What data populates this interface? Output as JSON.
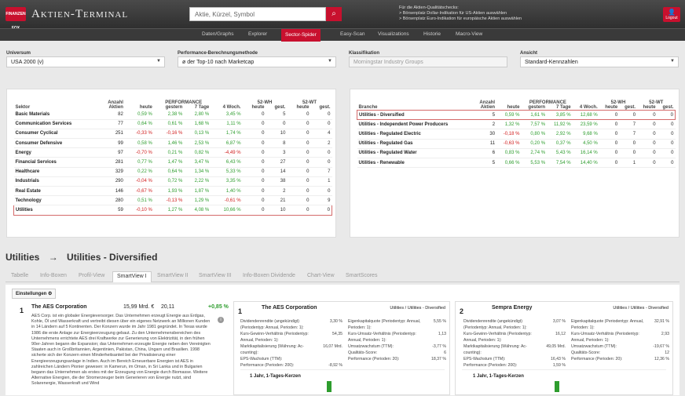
{
  "header": {
    "logo": "FINANZEN FOX",
    "title": "Aktien-Terminal",
    "search_placeholder": "Aktie, Kürzel, Symbol",
    "info": [
      "Für die Aktien-Qualitätschecks:",
      "> Börsenplatz Dollar-Indikation für US-Aktien auswählen",
      "> Börsenplatz Euro-Indikation für europäische Aktien auswählen"
    ],
    "logout": "Logout"
  },
  "nav": [
    "Daten/Graphs",
    "Explorer",
    "Sector-Spider",
    "Easy-Scan",
    "Visualizations",
    "Historie",
    "Macro-View"
  ],
  "filters": {
    "universum_label": "Universum",
    "universum": "USA 2000 (v)",
    "method_label": "Performance-Berechnungsmethode",
    "method": "ø der Top-10 nach Marketcap",
    "klass_label": "Klassifikation",
    "klass": "Morningstar Industry Groups",
    "ansicht_label": "Ansicht",
    "ansicht": "Standard-Kennzahlen"
  },
  "sector_table": {
    "headers": {
      "name": "Sektor",
      "count": "Anzahl Aktien",
      "perf": "PERFORMANCE",
      "heute": "heute",
      "gestern": "gestern",
      "d7": "7 Tage",
      "w4": "4 Woch.",
      "s2wh": "52-WH",
      "s2wt": "52-WT",
      "sub1": "heute",
      "sub2": "gest.",
      "sub3": "heute",
      "sub4": "gest."
    },
    "rows": [
      [
        "Basic Materials",
        "82",
        "0,59 %",
        "2,38 %",
        "2,80 %",
        "3,45 %",
        "0",
        "5",
        "0",
        "0"
      ],
      [
        "Communication Services",
        "77",
        "0,64 %",
        "0,61 %",
        "1,68 %",
        "1,11 %",
        "0",
        "0",
        "0",
        "0"
      ],
      [
        "Consumer Cyclical",
        "251",
        "-0,33 %",
        "-0,16 %",
        "0,13 %",
        "1,74 %",
        "0",
        "10",
        "0",
        "4"
      ],
      [
        "Consumer Defensive",
        "99",
        "0,58 %",
        "1,46 %",
        "2,53 %",
        "6,87 %",
        "0",
        "8",
        "0",
        "2"
      ],
      [
        "Energy",
        "97",
        "-0,70 %",
        "0,21 %",
        "0,82 %",
        "-4,49 %",
        "0",
        "3",
        "0",
        "0"
      ],
      [
        "Financial Services",
        "281",
        "0,77 %",
        "1,47 %",
        "3,47 %",
        "6,43 %",
        "0",
        "27",
        "0",
        "0"
      ],
      [
        "Healthcare",
        "329",
        "0,22 %",
        "0,64 %",
        "1,34 %",
        "5,33 %",
        "0",
        "14",
        "0",
        "7"
      ],
      [
        "Industrials",
        "290",
        "-0,04 %",
        "0,72 %",
        "2,22 %",
        "3,35 %",
        "0",
        "38",
        "0",
        "1"
      ],
      [
        "Real Estate",
        "146",
        "-0,67 %",
        "1,93 %",
        "1,87 %",
        "1,40 %",
        "0",
        "2",
        "0",
        "0"
      ],
      [
        "Technology",
        "280",
        "0,51 %",
        "-0,13 %",
        "1,29 %",
        "-0,61 %",
        "0",
        "21",
        "0",
        "9"
      ],
      [
        "Utilities",
        "59",
        "-0,10 %",
        "1,27 %",
        "4,08 %",
        "10,66 %",
        "0",
        "10",
        "0",
        "0"
      ]
    ]
  },
  "branch_table": {
    "headers": {
      "name": "Branche",
      "count": "Anzahl Aktien"
    },
    "rows": [
      [
        "Utilities - Diversified",
        "5",
        "0,59 %",
        "1,61 %",
        "3,85 %",
        "12,68 %",
        "0",
        "0",
        "0",
        "0"
      ],
      [
        "Utilities - Independent Power Producers",
        "2",
        "1,32 %",
        "7,57 %",
        "11,92 %",
        "23,59 %",
        "0",
        "7",
        "0",
        "0"
      ],
      [
        "Utilities - Regulated Electric",
        "30",
        "-0,18 %",
        "0,80 %",
        "2,92 %",
        "9,68 %",
        "0",
        "7",
        "0",
        "0"
      ],
      [
        "Utilities - Regulated Gas",
        "11",
        "-0,63 %",
        "0,20 %",
        "0,37 %",
        "4,50 %",
        "0",
        "0",
        "0",
        "0"
      ],
      [
        "Utilities - Regulated Water",
        "6",
        "0,83 %",
        "2,74 %",
        "5,43 %",
        "16,14 %",
        "0",
        "0",
        "0",
        "0"
      ],
      [
        "Utilities - Renewable",
        "5",
        "0,66 %",
        "5,53 %",
        "7,54 %",
        "14,40 %",
        "0",
        "1",
        "0",
        "0"
      ]
    ]
  },
  "breadcrumb": {
    "a": "Utilities",
    "arrow": "→",
    "b": "Utilities - Diversified"
  },
  "tabs": [
    "Tabelle",
    "Info-Boxen",
    "Profil-View",
    "SmartView I",
    "SmartView II",
    "SmartView III",
    "Info-Boxen Dividende",
    "Chart-View",
    "SmartScores"
  ],
  "einstellungen": "Einstellungen ⚙",
  "card1": {
    "num": "1",
    "name": "The AES Corporation",
    "price": "15,99 Mrd. €",
    "val": "20,11",
    "chg": "+0,85 %",
    "desc": "AES Corp. ist ein globaler Energieversorger. Das Unternehmen erzeugt Energie aus Erdgas, Kohle, Öl und Wasserkraft und vertreibt diesen über ein eigenes Netzwerk an Millionen Kunden in 14 Ländern auf 5 Kontinenten. Der Konzern wurde im Jahr 1981 gegründet. In Texas wurde 1986 die erste Anlage zur Energieerzeugung gebaut. Zu den Unternehmensbereichen des Unternehmens errichtete AES drei Kraftwerke zur Generierung von Elektrizität, in den frühen 90er-Jahren begann die Expansion; das Unternehmen erzeugte Energie neben den Vereinigten Staaten auch in Großbritannien, Argentinien, Pakistan, China, Ungarn und Brasilien. 1998 sicherte sich der Konzern einen Minderheitsanteil bei der Privatisierung einer Energieerzeugungsanlage in Indien. Auch im Bereich Erneuerbare Energien ist AES in zahlreichen Ländern Pionier gewesen: in Kamerun, im Oman, in Sri Lanka und in Bulgarien begann das Unternehmen als erstes mit der Erzeugung von Energie durch Biomasse. Weitere Alternative Energien, die der Stromerzeuger beim Generieren von Energie nutzt, sind Solarenergie, Wasserkraft und Wind"
  },
  "card2": {
    "num": "1",
    "name": "The AES Corporation",
    "sector": "Utilities / Utilities - Diversified",
    "kv1": [
      [
        "Dividendenrendite (angekündigt) (Periodentyp: Annual, Perioden: 1):",
        "3,30 %"
      ],
      [
        "Kurs-Gewinn-Verhältnis (Periodentyp: Annual, Perioden: 1):",
        "54,35"
      ],
      [
        "Marktkapitalisierung (Währung: Ac-counting):",
        "16,07 Mrd."
      ],
      [
        "EPS-Wachstum (TTM):",
        ""
      ],
      [
        "Performance (Perioden: 200):",
        "-8,92 %"
      ]
    ],
    "kv2": [
      [
        "Eigenkapitalquote (Periodentyp: Annual, Perioden: 1):",
        "5,55 %"
      ],
      [
        "Kurs-Umsatz-Verhältnis (Periodentyp: Annual, Perioden: 1):",
        "1,13"
      ],
      [
        "Umsatzwachstum (TTM):",
        "-3,77 %"
      ],
      [
        "Qualitäts-Score:",
        "6"
      ],
      [
        "Performance (Perioden: 20):",
        "18,37 %"
      ]
    ],
    "chart": "1 Jahr, 1-Tages-Kerzen"
  },
  "card3": {
    "num": "2",
    "name": "Sempra Energy",
    "sector": "Utilities / Utilities - Diversified",
    "kv1": [
      [
        "Dividendenrendite (angekündigt) (Periodentyp: Annual, Perioden: 1):",
        "3,07 %"
      ],
      [
        "Kurs-Gewinn-Verhältnis (Periodentyp: Annual, Perioden: 1):",
        "16,12"
      ],
      [
        "Marktkapitalisierung (Währung: Ac-counting):",
        "49,05 Mrd."
      ],
      [
        "EPS-Wachstum (TTM):",
        "16,43 %"
      ],
      [
        "Performance (Perioden: 200):",
        "1,59 %"
      ]
    ],
    "kv2": [
      [
        "Eigenkapitalquote (Periodentyp: Annual, Perioden: 1):",
        "32,91 %"
      ],
      [
        "Kurs-Umsatz-Verhältnis (Periodentyp: Annual, Perioden: 1):",
        "2,93"
      ],
      [
        "Umsatzwachstum (TTM):",
        "-19,67 %"
      ],
      [
        "Qualitäts-Score:",
        "12"
      ],
      [
        "Performance (Perioden: 20):",
        "12,36 %"
      ]
    ],
    "chart": "1 Jahr, 1-Tages-Kerzen"
  }
}
